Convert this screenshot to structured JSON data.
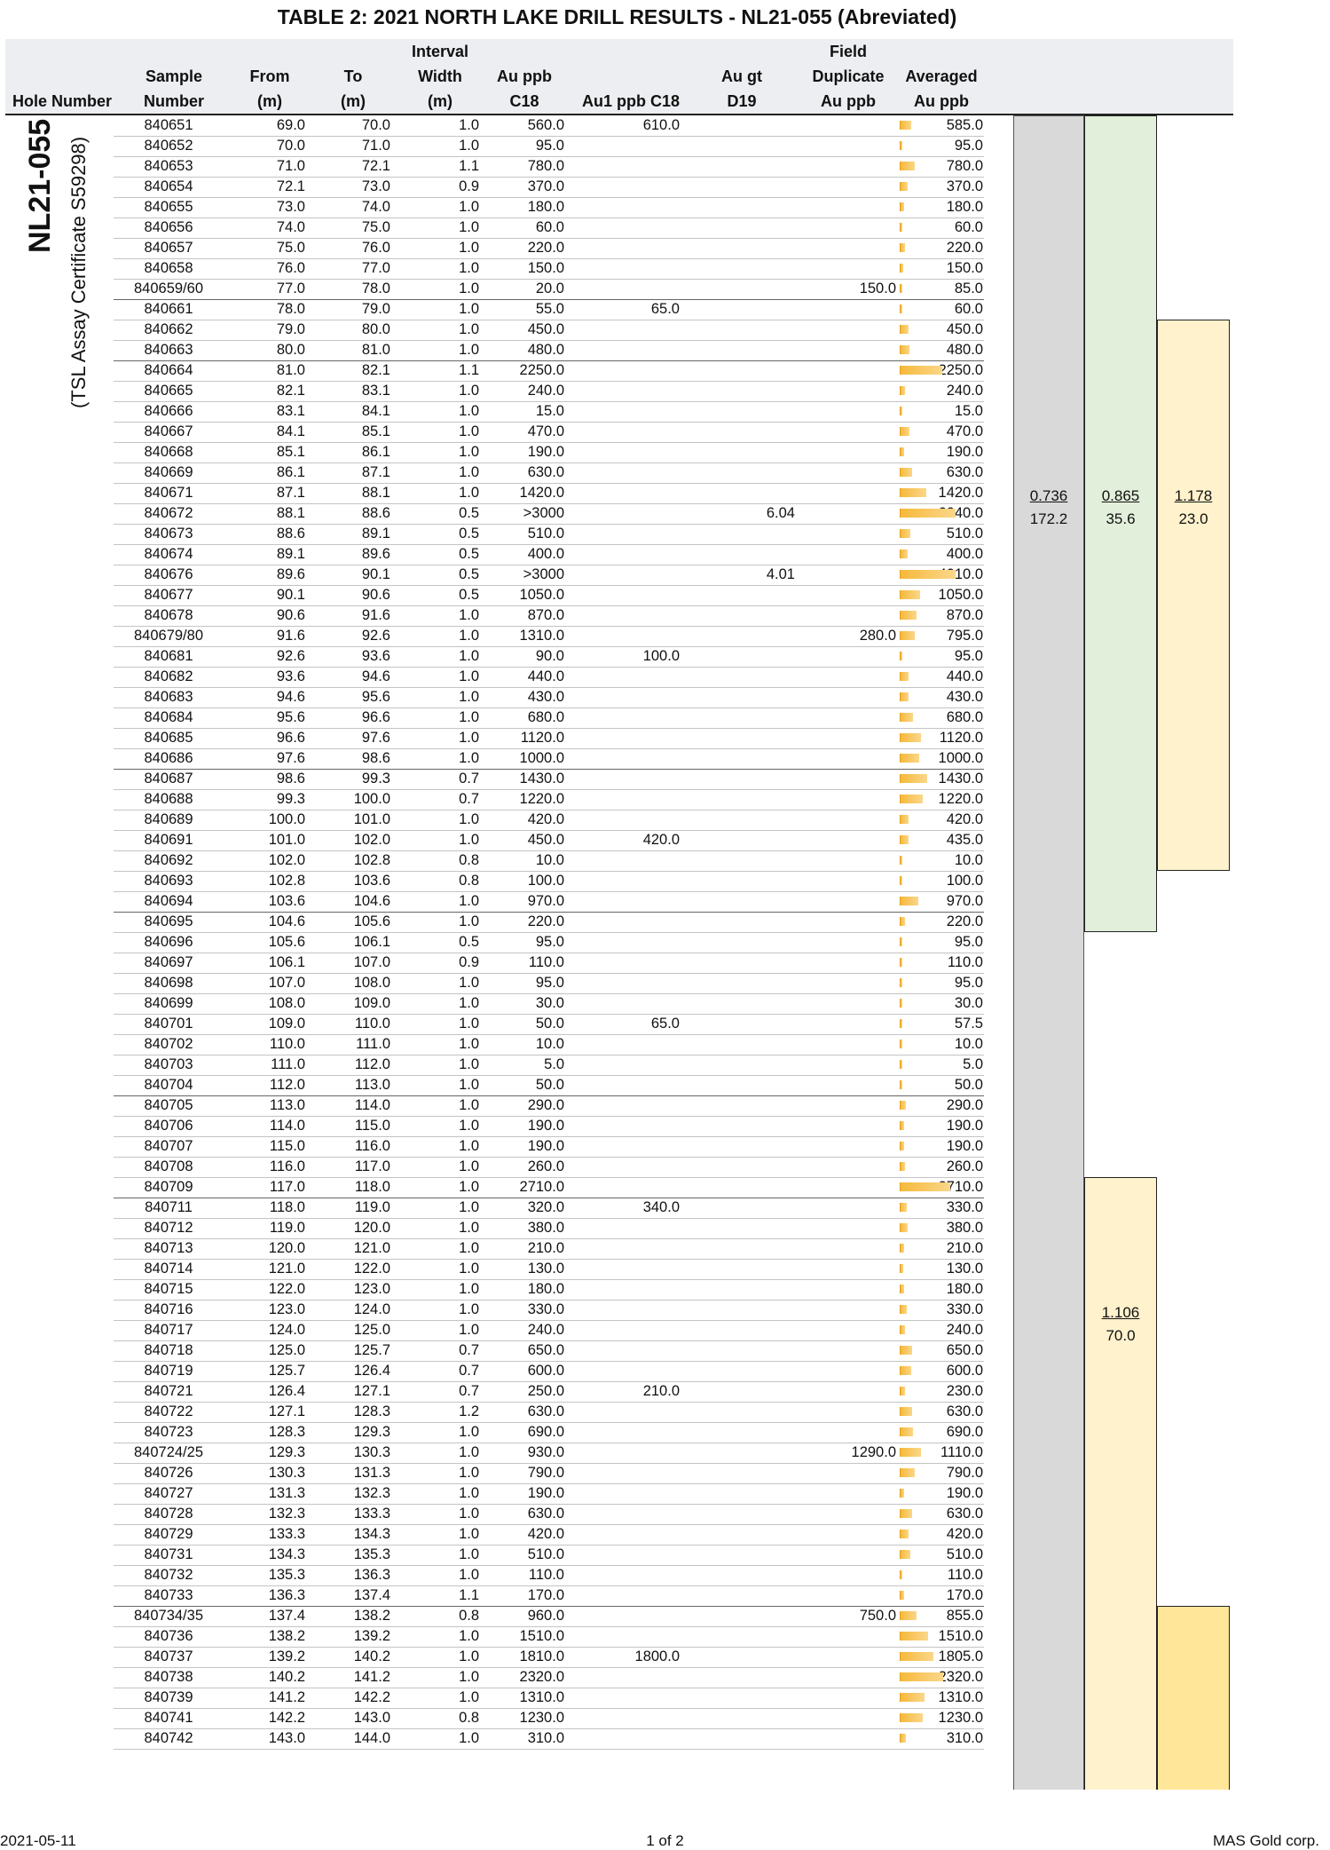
{
  "title": "TABLE 2: 2021 NORTH LAKE DRILL RESULTS - NL21-055 (Abreviated)",
  "hole": {
    "number": "NL21-055",
    "certificate": "(TSL Assay Certificate S59298)"
  },
  "columns": {
    "hole_number": [
      "Hole Number"
    ],
    "sample": [
      "Sample",
      "Number"
    ],
    "from": [
      "From",
      "(m)"
    ],
    "to": [
      "To",
      "(m)"
    ],
    "interval": [
      "Interval",
      "Width",
      "(m)"
    ],
    "au_ppb": [
      "Au ppb",
      "C18"
    ],
    "au1_ppb": [
      "Au1 ppb C18"
    ],
    "au_gt": [
      "Au gt",
      "D19"
    ],
    "field_dup": [
      "Field",
      "Duplicate",
      "Au ppb"
    ],
    "averaged": [
      "Averaged",
      "Au ppb"
    ]
  },
  "rows": [
    [
      "840651",
      "69.0",
      "70.0",
      "1.0",
      "560.0",
      "610.0",
      "",
      "",
      "585.0"
    ],
    [
      "840652",
      "70.0",
      "71.0",
      "1.0",
      "95.0",
      "",
      "",
      "",
      "95.0"
    ],
    [
      "840653",
      "71.0",
      "72.1",
      "1.1",
      "780.0",
      "",
      "",
      "",
      "780.0"
    ],
    [
      "840654",
      "72.1",
      "73.0",
      "0.9",
      "370.0",
      "",
      "",
      "",
      "370.0"
    ],
    [
      "840655",
      "73.0",
      "74.0",
      "1.0",
      "180.0",
      "",
      "",
      "",
      "180.0"
    ],
    [
      "840656",
      "74.0",
      "75.0",
      "1.0",
      "60.0",
      "",
      "",
      "",
      "60.0"
    ],
    [
      "840657",
      "75.0",
      "76.0",
      "1.0",
      "220.0",
      "",
      "",
      "",
      "220.0"
    ],
    [
      "840658",
      "76.0",
      "77.0",
      "1.0",
      "150.0",
      "",
      "",
      "",
      "150.0"
    ],
    [
      "840659/60",
      "77.0",
      "78.0",
      "1.0",
      "20.0",
      "",
      "",
      "150.0",
      "85.0"
    ],
    [
      "840661",
      "78.0",
      "79.0",
      "1.0",
      "55.0",
      "65.0",
      "",
      "",
      "60.0"
    ],
    [
      "840662",
      "79.0",
      "80.0",
      "1.0",
      "450.0",
      "",
      "",
      "",
      "450.0"
    ],
    [
      "840663",
      "80.0",
      "81.0",
      "1.0",
      "480.0",
      "",
      "",
      "",
      "480.0"
    ],
    [
      "840664",
      "81.0",
      "82.1",
      "1.1",
      "2250.0",
      "",
      "",
      "",
      "2250.0"
    ],
    [
      "840665",
      "82.1",
      "83.1",
      "1.0",
      "240.0",
      "",
      "",
      "",
      "240.0"
    ],
    [
      "840666",
      "83.1",
      "84.1",
      "1.0",
      "15.0",
      "",
      "",
      "",
      "15.0"
    ],
    [
      "840667",
      "84.1",
      "85.1",
      "1.0",
      "470.0",
      "",
      "",
      "",
      "470.0"
    ],
    [
      "840668",
      "85.1",
      "86.1",
      "1.0",
      "190.0",
      "",
      "",
      "",
      "190.0"
    ],
    [
      "840669",
      "86.1",
      "87.1",
      "1.0",
      "630.0",
      "",
      "",
      "",
      "630.0"
    ],
    [
      "840671",
      "87.1",
      "88.1",
      "1.0",
      "1420.0",
      "",
      "",
      "",
      "1420.0"
    ],
    [
      "840672",
      "88.1",
      "88.6",
      "0.5",
      ">3000",
      "",
      "6.04",
      "",
      "6040.0"
    ],
    [
      "840673",
      "88.6",
      "89.1",
      "0.5",
      "510.0",
      "",
      "",
      "",
      "510.0"
    ],
    [
      "840674",
      "89.1",
      "89.6",
      "0.5",
      "400.0",
      "",
      "",
      "",
      "400.0"
    ],
    [
      "840676",
      "89.6",
      "90.1",
      "0.5",
      ">3000",
      "",
      "4.01",
      "",
      "4010.0"
    ],
    [
      "840677",
      "90.1",
      "90.6",
      "0.5",
      "1050.0",
      "",
      "",
      "",
      "1050.0"
    ],
    [
      "840678",
      "90.6",
      "91.6",
      "1.0",
      "870.0",
      "",
      "",
      "",
      "870.0"
    ],
    [
      "840679/80",
      "91.6",
      "92.6",
      "1.0",
      "1310.0",
      "",
      "",
      "280.0",
      "795.0"
    ],
    [
      "840681",
      "92.6",
      "93.6",
      "1.0",
      "90.0",
      "100.0",
      "",
      "",
      "95.0"
    ],
    [
      "840682",
      "93.6",
      "94.6",
      "1.0",
      "440.0",
      "",
      "",
      "",
      "440.0"
    ],
    [
      "840683",
      "94.6",
      "95.6",
      "1.0",
      "430.0",
      "",
      "",
      "",
      "430.0"
    ],
    [
      "840684",
      "95.6",
      "96.6",
      "1.0",
      "680.0",
      "",
      "",
      "",
      "680.0"
    ],
    [
      "840685",
      "96.6",
      "97.6",
      "1.0",
      "1120.0",
      "",
      "",
      "",
      "1120.0"
    ],
    [
      "840686",
      "97.6",
      "98.6",
      "1.0",
      "1000.0",
      "",
      "",
      "",
      "1000.0"
    ],
    [
      "840687",
      "98.6",
      "99.3",
      "0.7",
      "1430.0",
      "",
      "",
      "",
      "1430.0"
    ],
    [
      "840688",
      "99.3",
      "100.0",
      "0.7",
      "1220.0",
      "",
      "",
      "",
      "1220.0"
    ],
    [
      "840689",
      "100.0",
      "101.0",
      "1.0",
      "420.0",
      "",
      "",
      "",
      "420.0"
    ],
    [
      "840691",
      "101.0",
      "102.0",
      "1.0",
      "450.0",
      "420.0",
      "",
      "",
      "435.0"
    ],
    [
      "840692",
      "102.0",
      "102.8",
      "0.8",
      "10.0",
      "",
      "",
      "",
      "10.0"
    ],
    [
      "840693",
      "102.8",
      "103.6",
      "0.8",
      "100.0",
      "",
      "",
      "",
      "100.0"
    ],
    [
      "840694",
      "103.6",
      "104.6",
      "1.0",
      "970.0",
      "",
      "",
      "",
      "970.0"
    ],
    [
      "840695",
      "104.6",
      "105.6",
      "1.0",
      "220.0",
      "",
      "",
      "",
      "220.0"
    ],
    [
      "840696",
      "105.6",
      "106.1",
      "0.5",
      "95.0",
      "",
      "",
      "",
      "95.0"
    ],
    [
      "840697",
      "106.1",
      "107.0",
      "0.9",
      "110.0",
      "",
      "",
      "",
      "110.0"
    ],
    [
      "840698",
      "107.0",
      "108.0",
      "1.0",
      "95.0",
      "",
      "",
      "",
      "95.0"
    ],
    [
      "840699",
      "108.0",
      "109.0",
      "1.0",
      "30.0",
      "",
      "",
      "",
      "30.0"
    ],
    [
      "840701",
      "109.0",
      "110.0",
      "1.0",
      "50.0",
      "65.0",
      "",
      "",
      "57.5"
    ],
    [
      "840702",
      "110.0",
      "111.0",
      "1.0",
      "10.0",
      "",
      "",
      "",
      "10.0"
    ],
    [
      "840703",
      "111.0",
      "112.0",
      "1.0",
      "5.0",
      "",
      "",
      "",
      "5.0"
    ],
    [
      "840704",
      "112.0",
      "113.0",
      "1.0",
      "50.0",
      "",
      "",
      "",
      "50.0"
    ],
    [
      "840705",
      "113.0",
      "114.0",
      "1.0",
      "290.0",
      "",
      "",
      "",
      "290.0"
    ],
    [
      "840706",
      "114.0",
      "115.0",
      "1.0",
      "190.0",
      "",
      "",
      "",
      "190.0"
    ],
    [
      "840707",
      "115.0",
      "116.0",
      "1.0",
      "190.0",
      "",
      "",
      "",
      "190.0"
    ],
    [
      "840708",
      "116.0",
      "117.0",
      "1.0",
      "260.0",
      "",
      "",
      "",
      "260.0"
    ],
    [
      "840709",
      "117.0",
      "118.0",
      "1.0",
      "2710.0",
      "",
      "",
      "",
      "2710.0"
    ],
    [
      "840711",
      "118.0",
      "119.0",
      "1.0",
      "320.0",
      "340.0",
      "",
      "",
      "330.0"
    ],
    [
      "840712",
      "119.0",
      "120.0",
      "1.0",
      "380.0",
      "",
      "",
      "",
      "380.0"
    ],
    [
      "840713",
      "120.0",
      "121.0",
      "1.0",
      "210.0",
      "",
      "",
      "",
      "210.0"
    ],
    [
      "840714",
      "121.0",
      "122.0",
      "1.0",
      "130.0",
      "",
      "",
      "",
      "130.0"
    ],
    [
      "840715",
      "122.0",
      "123.0",
      "1.0",
      "180.0",
      "",
      "",
      "",
      "180.0"
    ],
    [
      "840716",
      "123.0",
      "124.0",
      "1.0",
      "330.0",
      "",
      "",
      "",
      "330.0"
    ],
    [
      "840717",
      "124.0",
      "125.0",
      "1.0",
      "240.0",
      "",
      "",
      "",
      "240.0"
    ],
    [
      "840718",
      "125.0",
      "125.7",
      "0.7",
      "650.0",
      "",
      "",
      "",
      "650.0"
    ],
    [
      "840719",
      "125.7",
      "126.4",
      "0.7",
      "600.0",
      "",
      "",
      "",
      "600.0"
    ],
    [
      "840721",
      "126.4",
      "127.1",
      "0.7",
      "250.0",
      "210.0",
      "",
      "",
      "230.0"
    ],
    [
      "840722",
      "127.1",
      "128.3",
      "1.2",
      "630.0",
      "",
      "",
      "",
      "630.0"
    ],
    [
      "840723",
      "128.3",
      "129.3",
      "1.0",
      "690.0",
      "",
      "",
      "",
      "690.0"
    ],
    [
      "840724/25",
      "129.3",
      "130.3",
      "1.0",
      "930.0",
      "",
      "",
      "1290.0",
      "1110.0"
    ],
    [
      "840726",
      "130.3",
      "131.3",
      "1.0",
      "790.0",
      "",
      "",
      "",
      "790.0"
    ],
    [
      "840727",
      "131.3",
      "132.3",
      "1.0",
      "190.0",
      "",
      "",
      "",
      "190.0"
    ],
    [
      "840728",
      "132.3",
      "133.3",
      "1.0",
      "630.0",
      "",
      "",
      "",
      "630.0"
    ],
    [
      "840729",
      "133.3",
      "134.3",
      "1.0",
      "420.0",
      "",
      "",
      "",
      "420.0"
    ],
    [
      "840731",
      "134.3",
      "135.3",
      "1.0",
      "510.0",
      "",
      "",
      "",
      "510.0"
    ],
    [
      "840732",
      "135.3",
      "136.3",
      "1.0",
      "110.0",
      "",
      "",
      "",
      "110.0"
    ],
    [
      "840733",
      "136.3",
      "137.4",
      "1.1",
      "170.0",
      "",
      "",
      "",
      "170.0"
    ],
    [
      "840734/35",
      "137.4",
      "138.2",
      "0.8",
      "960.0",
      "",
      "",
      "750.0",
      "855.0"
    ],
    [
      "840736",
      "138.2",
      "139.2",
      "1.0",
      "1510.0",
      "",
      "",
      "",
      "1510.0"
    ],
    [
      "840737",
      "139.2",
      "140.2",
      "1.0",
      "1810.0",
      "1800.0",
      "",
      "",
      "1805.0"
    ],
    [
      "840738",
      "140.2",
      "141.2",
      "1.0",
      "2320.0",
      "",
      "",
      "",
      "2320.0"
    ],
    [
      "840739",
      "141.2",
      "142.2",
      "1.0",
      "1310.0",
      "",
      "",
      "",
      "1310.0"
    ],
    [
      "840741",
      "142.2",
      "143.0",
      "0.8",
      "1230.0",
      "",
      "",
      "",
      "1230.0"
    ],
    [
      "840742",
      "143.0",
      "144.0",
      "1.0",
      "310.0",
      "",
      "",
      "",
      "310.0"
    ]
  ],
  "dark_lines_after_rows": [
    9,
    12,
    32,
    39,
    48,
    53,
    73
  ],
  "bar_scale_max_ppb": 3000,
  "summary": {
    "grey": {
      "grade": "0.736",
      "length": "172.2",
      "from_row": 0,
      "to_row": 81
    },
    "green": {
      "grade": "0.865",
      "length": "35.6",
      "from_row": 0,
      "to_row": 39
    },
    "yellow1": {
      "grade": "1.178",
      "length": "23.0",
      "from_row": 10,
      "to_row": 36
    },
    "yellow2": {
      "grade": "1.106",
      "length": "70.0",
      "from_row": 52,
      "to_row": 81
    },
    "yellow3": {
      "grade": "",
      "length": "",
      "from_row": 73,
      "to_row": 81
    }
  },
  "colors": {
    "grey": "#d9d9d9",
    "green": "#e2efda",
    "yellow": "#fff2cc",
    "yellow_dark": "#ffe699",
    "bar": "#f6b93b"
  },
  "footer": {
    "date": "2021-05-11",
    "page": "1 of 2",
    "company": "MAS Gold corp."
  }
}
